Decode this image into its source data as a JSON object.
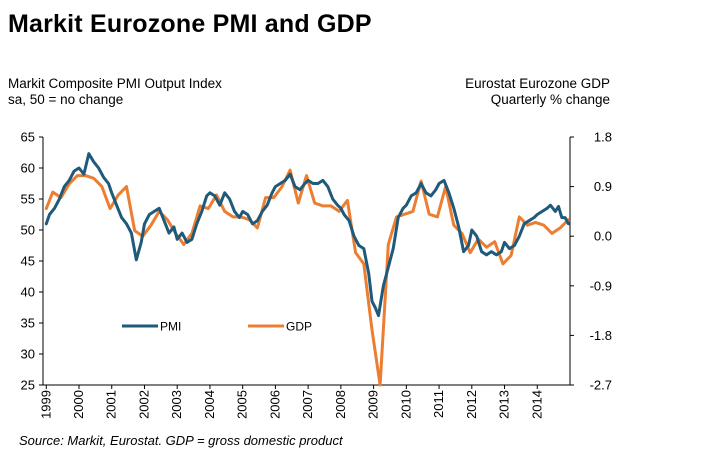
{
  "title": "Markit Eurozone PMI and GDP",
  "left_axis_title": [
    "Markit Composite PMI Output Index",
    "sa, 50 = no change"
  ],
  "right_axis_title": [
    "Eurostat Eurozone GDP",
    "Quarterly % change"
  ],
  "source": "Source: Markit, Eurostat. GDP = gross domestic product",
  "colors": {
    "pmi": "#1f5a7a",
    "gdp": "#ed7d31",
    "axis": "#000000"
  },
  "chart_data": {
    "type": "line",
    "title": "Markit Eurozone PMI and GDP",
    "x_tick_labels": [
      "1999",
      "2000",
      "2001",
      "2002",
      "2003",
      "2004",
      "2005",
      "2006",
      "2007",
      "2008",
      "2009",
      "2010",
      "2011",
      "2012",
      "2013",
      "2014"
    ],
    "x_range": [
      1998.9,
      2015.0
    ],
    "left_axis": {
      "label": "Markit Composite PMI Output Index, sa, 50 = no change",
      "ylim": [
        25,
        65
      ],
      "ticks": [
        25,
        30,
        35,
        40,
        45,
        50,
        55,
        60,
        65
      ]
    },
    "right_axis": {
      "label": "Eurostat Eurozone GDP, Quarterly % change",
      "ylim": [
        -2.7,
        1.8
      ],
      "ticks": [
        "1.8",
        "0.9",
        "0.0",
        "-0.9",
        "-1.8",
        "-2.7"
      ]
    },
    "legend": {
      "placement": "lower-left",
      "entries": [
        "PMI",
        "GDP"
      ]
    },
    "grid": false,
    "series": [
      {
        "name": "PMI",
        "axis": "left",
        "points": [
          [
            1999.0,
            51.0
          ],
          [
            1999.1,
            52.5
          ],
          [
            1999.25,
            53.5
          ],
          [
            1999.4,
            55.0
          ],
          [
            1999.55,
            57.0
          ],
          [
            1999.7,
            58.0
          ],
          [
            1999.85,
            59.5
          ],
          [
            2000.0,
            60.0
          ],
          [
            2000.15,
            59.0
          ],
          [
            2000.3,
            62.3
          ],
          [
            2000.45,
            61.0
          ],
          [
            2000.6,
            60.0
          ],
          [
            2000.75,
            58.5
          ],
          [
            2000.9,
            57.5
          ],
          [
            2001.0,
            56.0
          ],
          [
            2001.15,
            54.0
          ],
          [
            2001.3,
            52.0
          ],
          [
            2001.45,
            51.0
          ],
          [
            2001.6,
            49.5
          ],
          [
            2001.75,
            45.2
          ],
          [
            2001.9,
            48.0
          ],
          [
            2002.0,
            51.0
          ],
          [
            2002.15,
            52.5
          ],
          [
            2002.3,
            53.0
          ],
          [
            2002.45,
            53.5
          ],
          [
            2002.6,
            51.5
          ],
          [
            2002.75,
            49.5
          ],
          [
            2002.9,
            50.5
          ],
          [
            2003.0,
            48.5
          ],
          [
            2003.15,
            49.5
          ],
          [
            2003.3,
            48.0
          ],
          [
            2003.45,
            48.5
          ],
          [
            2003.6,
            51.0
          ],
          [
            2003.75,
            53.0
          ],
          [
            2003.9,
            55.5
          ],
          [
            2004.0,
            56.0
          ],
          [
            2004.15,
            55.5
          ],
          [
            2004.3,
            54.0
          ],
          [
            2004.45,
            56.0
          ],
          [
            2004.6,
            55.0
          ],
          [
            2004.75,
            53.0
          ],
          [
            2004.9,
            52.0
          ],
          [
            2005.0,
            53.0
          ],
          [
            2005.15,
            52.5
          ],
          [
            2005.3,
            51.0
          ],
          [
            2005.45,
            51.5
          ],
          [
            2005.6,
            53.0
          ],
          [
            2005.75,
            54.0
          ],
          [
            2005.9,
            56.0
          ],
          [
            2006.0,
            57.0
          ],
          [
            2006.15,
            57.5
          ],
          [
            2006.3,
            58.0
          ],
          [
            2006.45,
            59.0
          ],
          [
            2006.6,
            57.0
          ],
          [
            2006.75,
            56.5
          ],
          [
            2006.9,
            57.5
          ],
          [
            2007.0,
            58.0
          ],
          [
            2007.15,
            57.5
          ],
          [
            2007.3,
            57.5
          ],
          [
            2007.45,
            58.0
          ],
          [
            2007.6,
            57.0
          ],
          [
            2007.75,
            55.0
          ],
          [
            2007.9,
            54.0
          ],
          [
            2008.0,
            53.5
          ],
          [
            2008.1,
            52.5
          ],
          [
            2008.25,
            51.5
          ],
          [
            2008.4,
            49.0
          ],
          [
            2008.55,
            47.5
          ],
          [
            2008.7,
            47.0
          ],
          [
            2008.85,
            43.0
          ],
          [
            2008.95,
            38.5
          ],
          [
            2009.05,
            37.5
          ],
          [
            2009.15,
            36.2
          ],
          [
            2009.3,
            41.0
          ],
          [
            2009.45,
            44.0
          ],
          [
            2009.6,
            47.0
          ],
          [
            2009.75,
            52.0
          ],
          [
            2009.9,
            53.5
          ],
          [
            2010.0,
            54.0
          ],
          [
            2010.15,
            55.5
          ],
          [
            2010.3,
            56.0
          ],
          [
            2010.45,
            57.5
          ],
          [
            2010.6,
            56.0
          ],
          [
            2010.75,
            55.5
          ],
          [
            2010.9,
            56.5
          ],
          [
            2011.0,
            57.5
          ],
          [
            2011.15,
            58.0
          ],
          [
            2011.3,
            56.0
          ],
          [
            2011.45,
            53.5
          ],
          [
            2011.6,
            50.5
          ],
          [
            2011.75,
            46.5
          ],
          [
            2011.9,
            47.5
          ],
          [
            2012.0,
            50.0
          ],
          [
            2012.15,
            49.0
          ],
          [
            2012.3,
            46.5
          ],
          [
            2012.45,
            46.0
          ],
          [
            2012.6,
            46.5
          ],
          [
            2012.75,
            46.0
          ],
          [
            2012.9,
            46.5
          ],
          [
            2013.0,
            48.0
          ],
          [
            2013.15,
            47.0
          ],
          [
            2013.3,
            47.5
          ],
          [
            2013.45,
            49.0
          ],
          [
            2013.6,
            51.0
          ],
          [
            2013.75,
            51.5
          ],
          [
            2013.9,
            52.0
          ],
          [
            2014.0,
            52.5
          ],
          [
            2014.15,
            53.0
          ],
          [
            2014.3,
            53.5
          ],
          [
            2014.4,
            54.0
          ],
          [
            2014.55,
            53.0
          ],
          [
            2014.65,
            53.8
          ],
          [
            2014.75,
            52.0
          ],
          [
            2014.85,
            52.0
          ],
          [
            2014.95,
            51.0
          ]
        ]
      },
      {
        "name": "GDP",
        "axis": "right",
        "points": [
          [
            1999.0,
            0.5
          ],
          [
            1999.2,
            0.8
          ],
          [
            1999.45,
            0.7
          ],
          [
            1999.7,
            0.95
          ],
          [
            1999.95,
            1.1
          ],
          [
            2000.2,
            1.1
          ],
          [
            2000.45,
            1.05
          ],
          [
            2000.7,
            0.9
          ],
          [
            2000.95,
            0.5
          ],
          [
            2001.2,
            0.75
          ],
          [
            2001.45,
            0.9
          ],
          [
            2001.7,
            0.1
          ],
          [
            2001.95,
            0.0
          ],
          [
            2002.2,
            0.2
          ],
          [
            2002.45,
            0.45
          ],
          [
            2002.7,
            0.3
          ],
          [
            2002.95,
            0.05
          ],
          [
            2003.2,
            -0.15
          ],
          [
            2003.45,
            0.05
          ],
          [
            2003.7,
            0.55
          ],
          [
            2003.95,
            0.5
          ],
          [
            2004.2,
            0.75
          ],
          [
            2004.45,
            0.45
          ],
          [
            2004.7,
            0.35
          ],
          [
            2004.95,
            0.35
          ],
          [
            2005.2,
            0.3
          ],
          [
            2005.45,
            0.15
          ],
          [
            2005.7,
            0.7
          ],
          [
            2005.95,
            0.7
          ],
          [
            2006.2,
            0.9
          ],
          [
            2006.45,
            1.2
          ],
          [
            2006.7,
            0.6
          ],
          [
            2006.95,
            1.1
          ],
          [
            2007.2,
            0.6
          ],
          [
            2007.45,
            0.55
          ],
          [
            2007.7,
            0.55
          ],
          [
            2007.95,
            0.45
          ],
          [
            2008.2,
            0.65
          ],
          [
            2008.45,
            -0.3
          ],
          [
            2008.7,
            -0.5
          ],
          [
            2008.95,
            -1.7
          ],
          [
            2009.2,
            -2.7
          ],
          [
            2009.45,
            -0.15
          ],
          [
            2009.7,
            0.35
          ],
          [
            2009.95,
            0.4
          ],
          [
            2010.2,
            0.45
          ],
          [
            2010.45,
            1.0
          ],
          [
            2010.7,
            0.4
          ],
          [
            2010.95,
            0.35
          ],
          [
            2011.2,
            0.9
          ],
          [
            2011.45,
            0.2
          ],
          [
            2011.7,
            0.05
          ],
          [
            2011.95,
            -0.3
          ],
          [
            2012.2,
            -0.05
          ],
          [
            2012.45,
            -0.2
          ],
          [
            2012.7,
            -0.1
          ],
          [
            2012.95,
            -0.5
          ],
          [
            2013.2,
            -0.35
          ],
          [
            2013.45,
            0.35
          ],
          [
            2013.7,
            0.2
          ],
          [
            2013.95,
            0.25
          ],
          [
            2014.2,
            0.2
          ],
          [
            2014.45,
            0.05
          ],
          [
            2014.7,
            0.15
          ],
          [
            2014.95,
            0.3
          ]
        ]
      }
    ]
  }
}
